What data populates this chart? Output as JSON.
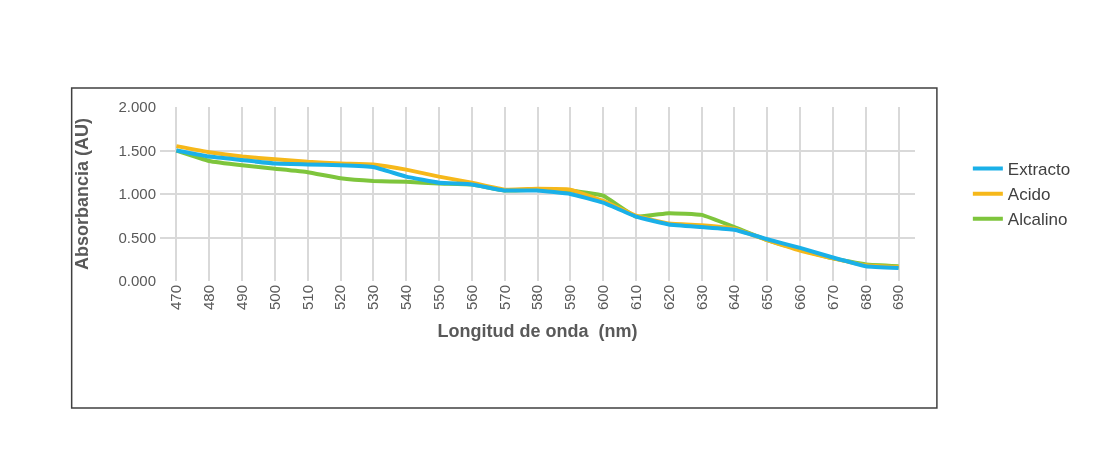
{
  "chart_data": {
    "type": "line",
    "xlabel": "Longitud de onda  (nm)",
    "ylabel": "Absorbancia (AU)",
    "categories": [
      "470",
      "480",
      "490",
      "500",
      "510",
      "520",
      "530",
      "540",
      "550",
      "560",
      "570",
      "580",
      "590",
      "600",
      "610",
      "620",
      "630",
      "640",
      "650",
      "660",
      "670",
      "680",
      "690"
    ],
    "series": [
      {
        "name": "Extracto",
        "color": "#1ab0e8",
        "values": [
          1.5,
          1.43,
          1.39,
          1.35,
          1.34,
          1.33,
          1.31,
          1.2,
          1.13,
          1.11,
          1.04,
          1.04,
          1.0,
          0.9,
          0.74,
          0.65,
          0.62,
          0.59,
          0.48,
          0.38,
          0.27,
          0.17,
          0.15
        ]
      },
      {
        "name": "Acido",
        "color": "#f6b81a",
        "values": [
          1.55,
          1.48,
          1.43,
          1.4,
          1.37,
          1.35,
          1.34,
          1.28,
          1.2,
          1.13,
          1.05,
          1.06,
          1.05,
          0.92,
          0.75,
          0.66,
          0.64,
          0.6,
          0.47,
          0.35,
          0.26,
          0.18,
          0.16
        ]
      },
      {
        "name": "Alcalino",
        "color": "#7ec53c",
        "values": [
          1.5,
          1.38,
          1.33,
          1.29,
          1.25,
          1.18,
          1.15,
          1.14,
          1.12,
          1.11,
          1.04,
          1.05,
          1.04,
          0.98,
          0.74,
          0.78,
          0.76,
          0.62,
          0.47,
          0.36,
          0.26,
          0.19,
          0.17
        ]
      }
    ],
    "ylim": [
      0,
      2
    ],
    "yticks": [
      {
        "value": 0,
        "label": "0.000"
      },
      {
        "value": 0.5,
        "label": "0.500"
      },
      {
        "value": 1,
        "label": "1.000"
      },
      {
        "value": 1.5,
        "label": "1.500"
      },
      {
        "value": 2,
        "label": "2.000"
      }
    ],
    "grid": true,
    "legend": "right",
    "marker": "none",
    "line_style": "solid"
  }
}
